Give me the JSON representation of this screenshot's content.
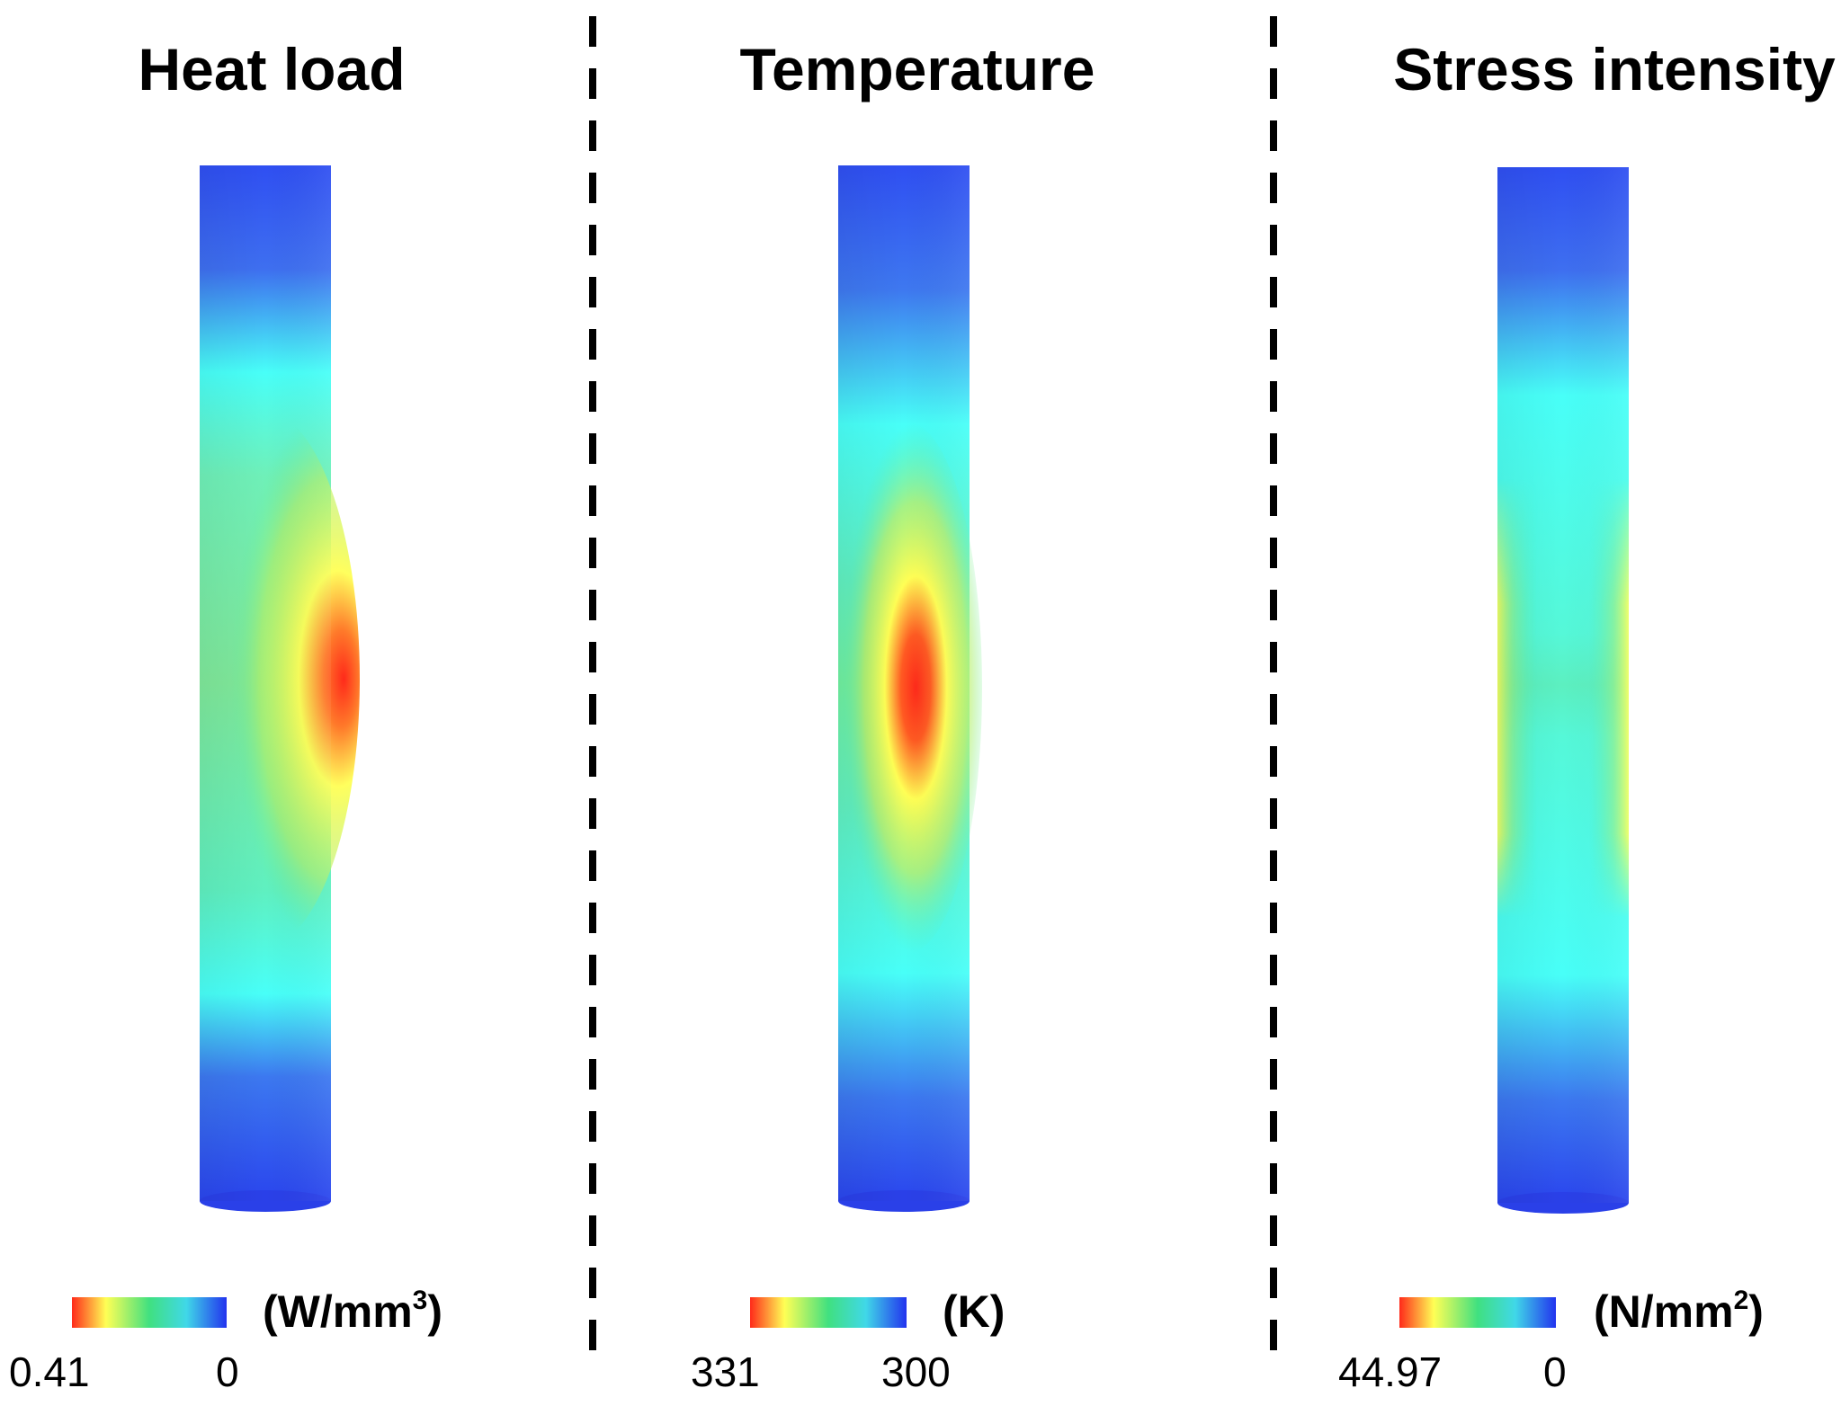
{
  "panels": [
    {
      "title": "Heat load",
      "unit_base": "(W/mm",
      "unit_sup": "3",
      "unit_close": ")",
      "max_label": "0.41",
      "min_label": "0",
      "pattern": "heat"
    },
    {
      "title": "Temperature",
      "unit_base": "(K)",
      "unit_sup": "",
      "unit_close": "",
      "max_label": "331",
      "min_label": "300",
      "pattern": "temperature"
    },
    {
      "title": "Stress intensity",
      "unit_base": "(N/mm",
      "unit_sup": "2",
      "unit_close": ")",
      "max_label": "44.97",
      "min_label": "0",
      "pattern": "stress"
    }
  ],
  "colors": {
    "red": "#ff2a1a",
    "yellow": "#ffff55",
    "green": "#40e080",
    "cyan": "#48fff8",
    "blue": "#2a4ff0",
    "deep_blue": "#2233ee",
    "divider": "#000000"
  }
}
